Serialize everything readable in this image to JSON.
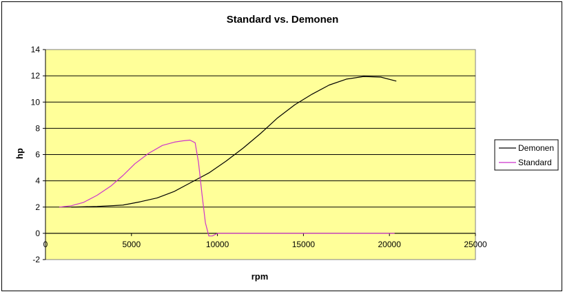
{
  "chart_data": {
    "type": "line",
    "title": "Standard vs. Demonen",
    "xlabel": "rpm",
    "ylabel": "hp",
    "xlim": [
      0,
      25000
    ],
    "ylim": [
      -2,
      14
    ],
    "xticks": [
      0,
      5000,
      10000,
      15000,
      20000,
      25000
    ],
    "yticks": [
      -2,
      0,
      2,
      4,
      6,
      8,
      10,
      12,
      14
    ],
    "grid": "horizontal",
    "legend_position": "right",
    "plot_background": "#FFFF99",
    "series": [
      {
        "name": "Demonen",
        "color": "#000000",
        "x": [
          1500,
          3000,
          4500,
          5500,
          6500,
          7500,
          8500,
          9500,
          10500,
          11500,
          12500,
          13500,
          14500,
          15500,
          16500,
          17500,
          18500,
          19500,
          20400
        ],
        "y": [
          2.0,
          2.05,
          2.15,
          2.4,
          2.7,
          3.2,
          3.9,
          4.6,
          5.5,
          6.5,
          7.6,
          8.8,
          9.8,
          10.6,
          11.3,
          11.75,
          11.95,
          11.9,
          11.6
        ]
      },
      {
        "name": "Standard",
        "color": "#CC33CC",
        "x": [
          800,
          1500,
          2200,
          3000,
          3800,
          4500,
          5200,
          6000,
          6800,
          7500,
          8000,
          8400,
          8700,
          8900,
          9100,
          9300,
          9500,
          9700,
          10000,
          11000,
          13000,
          15000,
          17000,
          19000,
          20300
        ],
        "y": [
          2.0,
          2.1,
          2.35,
          2.9,
          3.6,
          4.4,
          5.3,
          6.1,
          6.7,
          6.95,
          7.05,
          7.1,
          6.9,
          5.4,
          3.0,
          0.8,
          -0.2,
          -0.2,
          0.0,
          0.0,
          0.0,
          0.0,
          0.0,
          0.0,
          0.0
        ]
      }
    ]
  }
}
